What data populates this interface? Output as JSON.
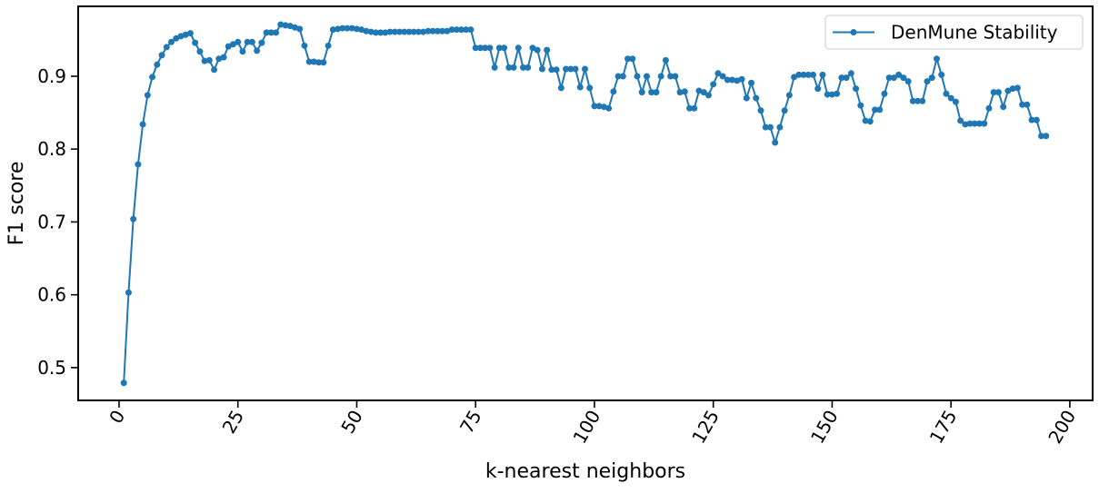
{
  "chart_data": {
    "type": "line",
    "xlabel": "k-nearest neighbors",
    "ylabel": "F1 score",
    "x": [
      1,
      2,
      3,
      4,
      5,
      6,
      7,
      8,
      9,
      10,
      11,
      12,
      13,
      14,
      15,
      16,
      17,
      18,
      19,
      20,
      21,
      22,
      23,
      24,
      25,
      26,
      27,
      28,
      29,
      30,
      31,
      32,
      33,
      34,
      35,
      36,
      37,
      38,
      39,
      40,
      41,
      42,
      43,
      44,
      45,
      46,
      47,
      48,
      49,
      50,
      51,
      52,
      53,
      54,
      55,
      56,
      57,
      58,
      59,
      60,
      61,
      62,
      63,
      64,
      65,
      66,
      67,
      68,
      69,
      70,
      71,
      72,
      73,
      74,
      75,
      76,
      77,
      78,
      79,
      80,
      81,
      82,
      83,
      84,
      85,
      86,
      87,
      88,
      89,
      90,
      91,
      92,
      93,
      94,
      95,
      96,
      97,
      98,
      99,
      100,
      101,
      102,
      103,
      104,
      105,
      106,
      107,
      108,
      109,
      110,
      111,
      112,
      113,
      114,
      115,
      116,
      117,
      118,
      119,
      120,
      121,
      122,
      123,
      124,
      125,
      126,
      127,
      128,
      129,
      130,
      131,
      132,
      133,
      134,
      135,
      136,
      137,
      138,
      139,
      140,
      141,
      142,
      143,
      144,
      145,
      146,
      147,
      148,
      149,
      150,
      151,
      152,
      153,
      154,
      155,
      156,
      157,
      158,
      159,
      160,
      161,
      162,
      163,
      164,
      165,
      166,
      167,
      168,
      169,
      170,
      171,
      172,
      173,
      174,
      175,
      176,
      177,
      178,
      179,
      180,
      181,
      182,
      183,
      184,
      185,
      186,
      187,
      188,
      189,
      190,
      191,
      192,
      193,
      194,
      195
    ],
    "series": [
      {
        "name": "DenMune Stability",
        "color": "#1f77b4",
        "values": [
          0.479,
          0.603,
          0.704,
          0.779,
          0.834,
          0.874,
          0.899,
          0.916,
          0.929,
          0.94,
          0.947,
          0.952,
          0.955,
          0.957,
          0.959,
          0.946,
          0.934,
          0.921,
          0.922,
          0.909,
          0.924,
          0.926,
          0.941,
          0.944,
          0.947,
          0.934,
          0.947,
          0.947,
          0.935,
          0.946,
          0.96,
          0.96,
          0.96,
          0.971,
          0.97,
          0.969,
          0.967,
          0.965,
          0.942,
          0.92,
          0.92,
          0.919,
          0.919,
          0.942,
          0.964,
          0.965,
          0.966,
          0.966,
          0.966,
          0.965,
          0.964,
          0.962,
          0.961,
          0.96,
          0.96,
          0.96,
          0.961,
          0.961,
          0.961,
          0.961,
          0.961,
          0.961,
          0.961,
          0.961,
          0.962,
          0.962,
          0.962,
          0.962,
          0.962,
          0.964,
          0.964,
          0.964,
          0.964,
          0.964,
          0.939,
          0.939,
          0.939,
          0.939,
          0.912,
          0.939,
          0.939,
          0.912,
          0.912,
          0.939,
          0.912,
          0.912,
          0.939,
          0.936,
          0.91,
          0.936,
          0.909,
          0.909,
          0.884,
          0.91,
          0.91,
          0.91,
          0.885,
          0.91,
          0.884,
          0.859,
          0.859,
          0.858,
          0.856,
          0.879,
          0.9,
          0.9,
          0.924,
          0.924,
          0.9,
          0.878,
          0.9,
          0.878,
          0.878,
          0.9,
          0.922,
          0.9,
          0.9,
          0.878,
          0.879,
          0.856,
          0.856,
          0.88,
          0.878,
          0.874,
          0.889,
          0.904,
          0.9,
          0.895,
          0.895,
          0.894,
          0.896,
          0.87,
          0.891,
          0.87,
          0.853,
          0.83,
          0.83,
          0.809,
          0.83,
          0.853,
          0.874,
          0.899,
          0.902,
          0.902,
          0.902,
          0.902,
          0.883,
          0.902,
          0.875,
          0.875,
          0.876,
          0.898,
          0.898,
          0.904,
          0.883,
          0.86,
          0.839,
          0.838,
          0.854,
          0.854,
          0.876,
          0.898,
          0.898,
          0.902,
          0.898,
          0.893,
          0.866,
          0.866,
          0.866,
          0.893,
          0.898,
          0.924,
          0.902,
          0.876,
          0.87,
          0.865,
          0.839,
          0.834,
          0.835,
          0.835,
          0.835,
          0.835,
          0.856,
          0.878,
          0.878,
          0.858,
          0.88,
          0.883,
          0.884,
          0.861,
          0.861,
          0.84,
          0.84,
          0.818,
          0.818
        ]
      }
    ],
    "xlim": [
      -8.6,
      204.8
    ],
    "ylim": [
      0.455,
      0.996
    ],
    "xticks": [
      0,
      25,
      50,
      75,
      100,
      125,
      150,
      175,
      200
    ],
    "yticks": [
      0.5,
      0.6,
      0.7,
      0.8,
      0.9
    ],
    "legend": "upper right",
    "grid": false
  }
}
